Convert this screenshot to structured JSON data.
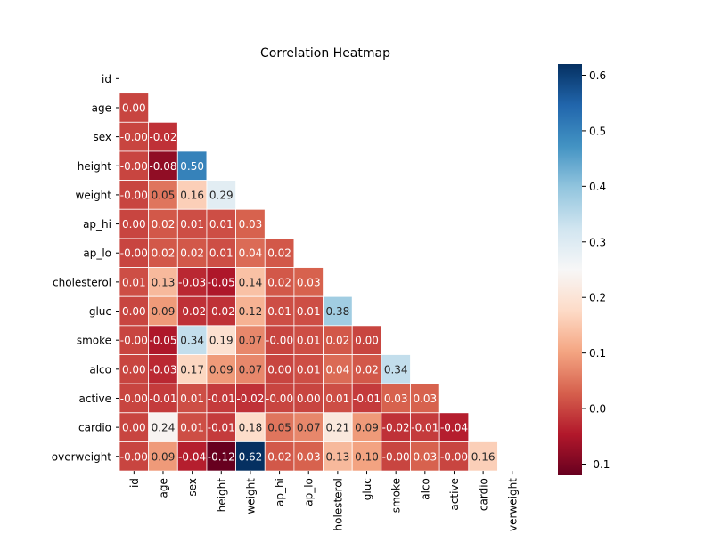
{
  "chart_data": {
    "type": "heatmap",
    "title": "Correlation Heatmap",
    "labels": [
      "id",
      "age",
      "sex",
      "height",
      "weight",
      "ap_hi",
      "ap_lo",
      "cholesterol",
      "gluc",
      "smoke",
      "alco",
      "active",
      "cardio",
      "overweight"
    ],
    "x_tick_labels": [
      "id",
      "age",
      "sex",
      "height",
      "weight",
      "ap_hi",
      "ap_lo",
      "holesterol",
      "gluc",
      "smoke",
      "alco",
      "active",
      "cardio",
      "verweight"
    ],
    "values": [
      [],
      [
        "0.00"
      ],
      [
        "-0.00",
        "-0.02"
      ],
      [
        "-0.00",
        "-0.08",
        "0.50"
      ],
      [
        "-0.00",
        "0.05",
        "0.16",
        "0.29"
      ],
      [
        "0.00",
        "0.02",
        "0.01",
        "0.01",
        "0.03"
      ],
      [
        "-0.00",
        "0.02",
        "0.02",
        "0.01",
        "0.04",
        "0.02"
      ],
      [
        "0.01",
        "0.13",
        "-0.03",
        "-0.05",
        "0.14",
        "0.02",
        "0.03"
      ],
      [
        "0.00",
        "0.09",
        "-0.02",
        "-0.02",
        "0.12",
        "0.01",
        "0.01",
        "0.38"
      ],
      [
        "-0.00",
        "-0.05",
        "0.34",
        "0.19",
        "0.07",
        "-0.00",
        "0.01",
        "0.02",
        "0.00"
      ],
      [
        "0.00",
        "-0.03",
        "0.17",
        "0.09",
        "0.07",
        "0.00",
        "0.01",
        "0.04",
        "0.02",
        "0.34"
      ],
      [
        "-0.00",
        "-0.01",
        "0.01",
        "-0.01",
        "-0.02",
        "-0.00",
        "0.00",
        "0.01",
        "-0.01",
        "0.03",
        "0.03"
      ],
      [
        "0.00",
        "0.24",
        "0.01",
        "-0.01",
        "0.18",
        "0.05",
        "0.07",
        "0.21",
        "0.09",
        "-0.02",
        "-0.01",
        "-0.04"
      ],
      [
        "-0.00",
        "0.09",
        "-0.04",
        "-0.12",
        "0.62",
        "0.02",
        "0.03",
        "0.13",
        "0.10",
        "-0.00",
        "0.03",
        "-0.00",
        "0.16"
      ]
    ],
    "colorbar": {
      "min": -0.12,
      "max": 0.62,
      "ticks": [
        "-0.1",
        "0.0",
        "0.1",
        "0.2",
        "0.3",
        "0.4",
        "0.5",
        "0.6"
      ],
      "colormap": "RdBu",
      "low_color": "#67001f",
      "mid_color": "#f7f7f7",
      "high_color": "#053061"
    },
    "mask": "upper-triangle",
    "grid": false
  }
}
